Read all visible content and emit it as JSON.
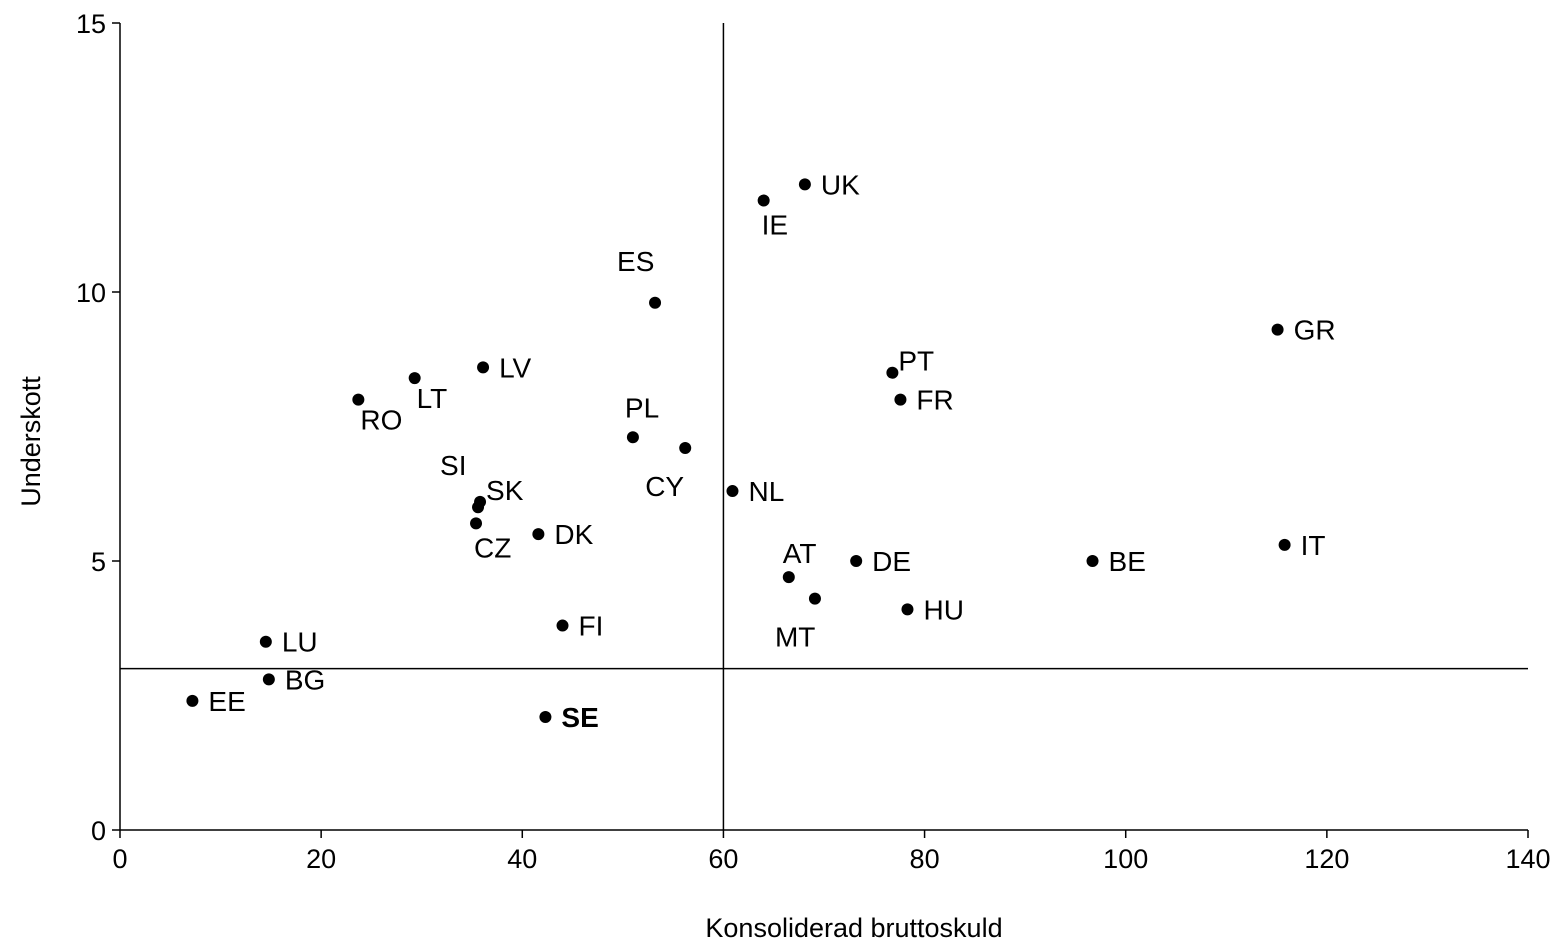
{
  "chart_data": {
    "type": "scatter",
    "title": "",
    "xlabel": "Konsoliderad bruttoskuld",
    "ylabel": "Underskott",
    "xlim": [
      0,
      140
    ],
    "ylim": [
      0,
      15
    ],
    "x_ticks": [
      "0",
      "20",
      "40",
      "60",
      "80",
      "100",
      "120",
      "140"
    ],
    "y_ticks": [
      "0",
      "5",
      "10",
      "15"
    ],
    "grid": false,
    "legend": "none",
    "reference_lines": {
      "x": 60,
      "y": 3
    },
    "point_color": "#000000",
    "highlight_color": "#e8141b",
    "points": [
      {
        "label": "UK",
        "x": 68.1,
        "y": 12.0,
        "pos": "right"
      },
      {
        "label": "IE",
        "x": 64.0,
        "y": 11.7,
        "pos": "below"
      },
      {
        "label": "ES",
        "x": 53.2,
        "y": 9.8,
        "pos": "above-left"
      },
      {
        "label": "GR",
        "x": 115.1,
        "y": 9.3,
        "pos": "right"
      },
      {
        "label": "LV",
        "x": 36.1,
        "y": 8.6,
        "pos": "right"
      },
      {
        "label": "PT",
        "x": 76.8,
        "y": 8.5,
        "pos": "upper-right"
      },
      {
        "label": "LT",
        "x": 29.3,
        "y": 8.4,
        "pos": "below-right"
      },
      {
        "label": "RO",
        "x": 23.7,
        "y": 8.0,
        "pos": "below-right"
      },
      {
        "label": "FR",
        "x": 77.6,
        "y": 8.0,
        "pos": "right"
      },
      {
        "label": "PL",
        "x": 51.0,
        "y": 7.3,
        "pos": "above"
      },
      {
        "label": "CY",
        "x": 56.2,
        "y": 7.1,
        "pos": "below-left"
      },
      {
        "label": "NL",
        "x": 60.9,
        "y": 6.3,
        "pos": "right"
      },
      {
        "label": "SK",
        "x": 35.8,
        "y": 6.1,
        "pos": "upper-right"
      },
      {
        "label": "SI",
        "x": 35.6,
        "y": 6.0,
        "pos": "above-left"
      },
      {
        "label": "CZ",
        "x": 35.4,
        "y": 5.7,
        "pos": "below"
      },
      {
        "label": "DK",
        "x": 41.6,
        "y": 5.5,
        "pos": "right"
      },
      {
        "label": "IT",
        "x": 115.8,
        "y": 5.3,
        "pos": "right"
      },
      {
        "label": "DE",
        "x": 73.2,
        "y": 5.0,
        "pos": "right"
      },
      {
        "label": "BE",
        "x": 96.7,
        "y": 5.0,
        "pos": "right"
      },
      {
        "label": "AT",
        "x": 66.5,
        "y": 4.7,
        "pos": "above-right"
      },
      {
        "label": "MT",
        "x": 69.1,
        "y": 4.3,
        "pos": "below-left"
      },
      {
        "label": "HU",
        "x": 78.3,
        "y": 4.1,
        "pos": "right"
      },
      {
        "label": "FI",
        "x": 44.0,
        "y": 3.8,
        "pos": "right"
      },
      {
        "label": "LU",
        "x": 14.5,
        "y": 3.5,
        "pos": "right"
      },
      {
        "label": "BG",
        "x": 14.8,
        "y": 2.8,
        "pos": "right"
      },
      {
        "label": "EE",
        "x": 7.2,
        "y": 2.4,
        "pos": "right"
      },
      {
        "label": "SE",
        "x": 42.3,
        "y": 2.1,
        "pos": "right",
        "highlight": true
      }
    ]
  }
}
